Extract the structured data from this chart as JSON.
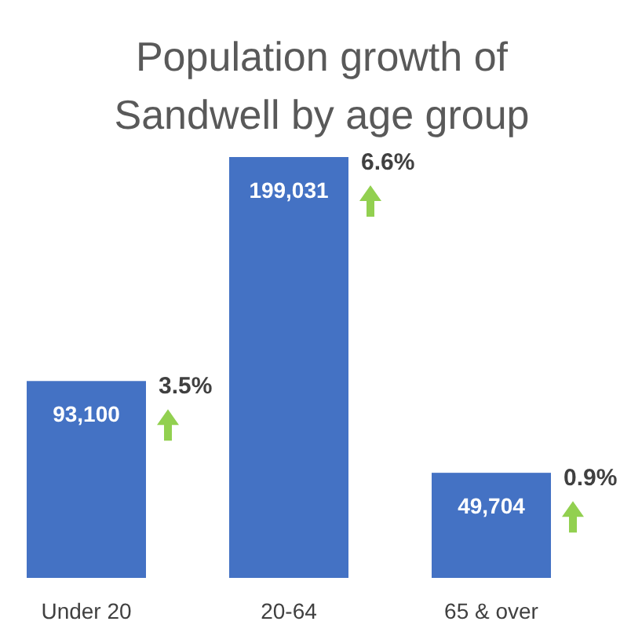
{
  "chart_data": {
    "type": "bar",
    "title": "Population growth of Sandwell by age group",
    "categories": [
      "Under 20",
      "20-64",
      "65 & over"
    ],
    "values": [
      93100,
      199031,
      49704
    ],
    "color": "#4472c4",
    "value_labels": [
      "93,100",
      "199,031",
      "49,704"
    ],
    "annotations": [
      "3.5%",
      "6.6%",
      "0.9%"
    ]
  }
}
